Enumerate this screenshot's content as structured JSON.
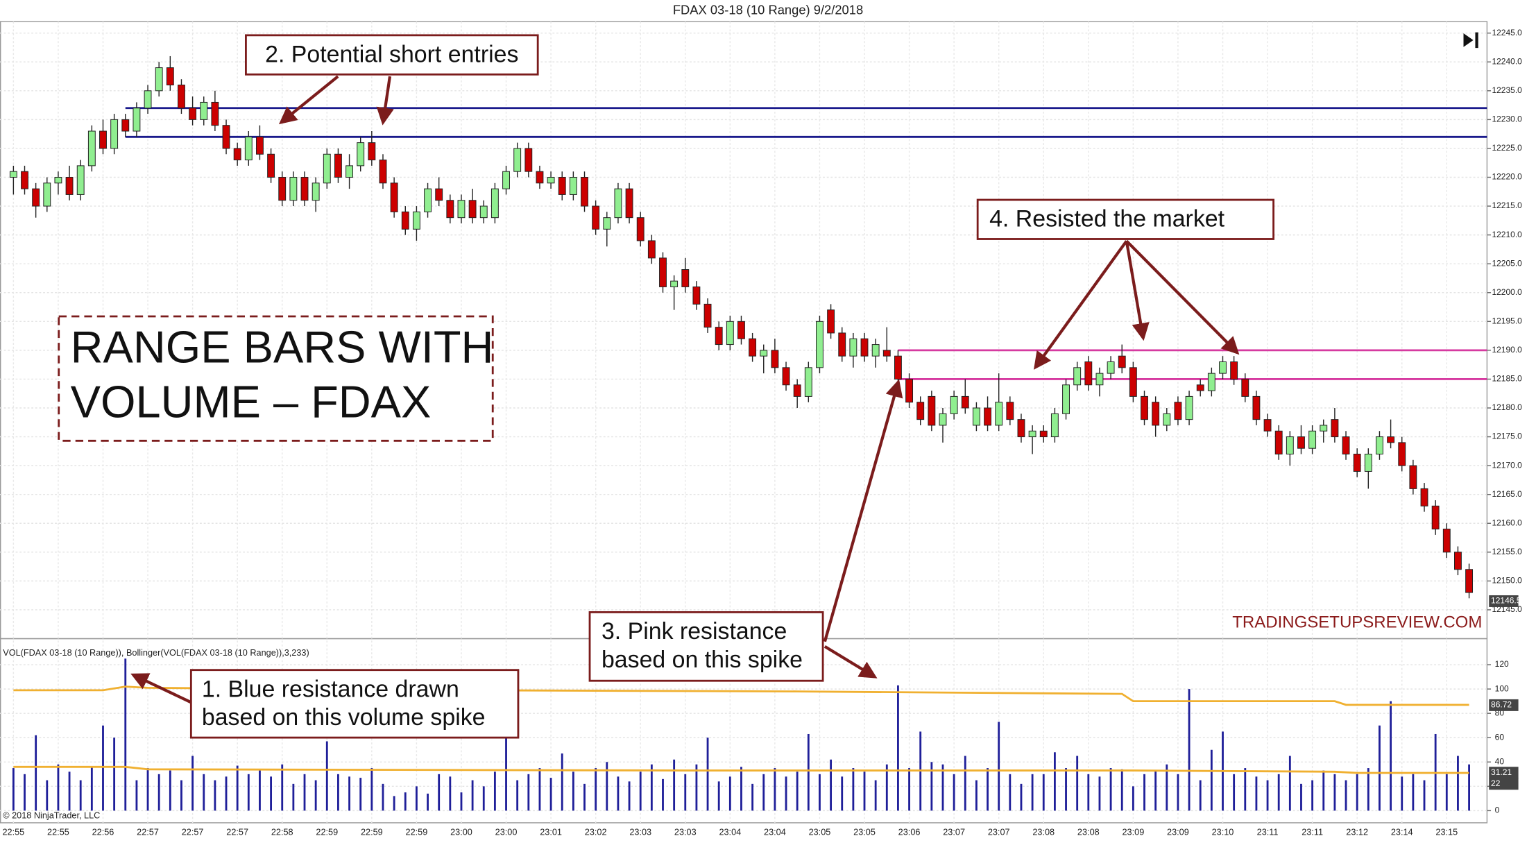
{
  "chart_data": {
    "type": "candlestick",
    "title": "FDAX 03-18 (10 Range)  9/2/2018",
    "categories": [
      "22:55",
      null,
      null,
      null,
      "22:55",
      null,
      null,
      null,
      "22:56",
      null,
      null,
      null,
      "22:57",
      null,
      null,
      null,
      "22:57",
      null,
      null,
      null,
      "22:57",
      null,
      null,
      null,
      "22:58",
      null,
      null,
      null,
      "22:59",
      null,
      null,
      null,
      "22:59",
      null,
      null,
      null,
      "22:59",
      null,
      null,
      null,
      "23:00",
      null,
      null,
      null,
      "23:00",
      null,
      null,
      null,
      "23:01",
      null,
      null,
      null,
      "23:02",
      null,
      null,
      null,
      "23:03",
      null,
      null,
      null,
      "23:03",
      null,
      null,
      null,
      "23:04",
      null,
      null,
      null,
      "23:04",
      null,
      null,
      null,
      "23:05",
      null,
      null,
      null,
      "23:05",
      null,
      null,
      null,
      "23:06",
      null,
      null,
      null,
      "23:07",
      null,
      null,
      null,
      "23:07",
      null,
      null,
      null,
      "23:08",
      null,
      null,
      null,
      "23:08",
      null,
      null,
      null,
      "23:09",
      null,
      null,
      null,
      "23:09",
      null,
      null,
      null,
      "23:10",
      null,
      null,
      null,
      "23:11",
      null,
      null,
      null,
      "23:11",
      null,
      null,
      null,
      "23:12",
      null,
      null,
      null,
      "23:14",
      null,
      null,
      null,
      "23:15",
      null,
      null
    ],
    "xlim": [
      -1.2,
      131.6
    ],
    "up_color": "#90ee90",
    "down_color": "#cc0000",
    "candles": [
      [
        12220,
        12222,
        12217,
        12221
      ],
      [
        12221,
        12222,
        12217,
        12218
      ],
      [
        12218,
        12219,
        12213,
        12215
      ],
      [
        12215,
        12220,
        12214,
        12219
      ],
      [
        12219,
        12221,
        12217,
        12220
      ],
      [
        12220,
        12222,
        12216,
        12217
      ],
      [
        12217,
        12223,
        12216,
        12222
      ],
      [
        12222,
        12229,
        12221,
        12228
      ],
      [
        12228,
        12230,
        12224,
        12225
      ],
      [
        12225,
        12231,
        12224,
        12230
      ],
      [
        12230,
        12231,
        12227,
        12228
      ],
      [
        12228,
        12233,
        12227,
        12232
      ],
      [
        12232,
        12236,
        12231,
        12235
      ],
      [
        12235,
        12240,
        12234,
        12239
      ],
      [
        12239,
        12241,
        12235,
        12236
      ],
      [
        12236,
        12237,
        12231,
        12232
      ],
      [
        12232,
        12234,
        12229,
        12230
      ],
      [
        12230,
        12234,
        12229,
        12233
      ],
      [
        12233,
        12235,
        12228,
        12229
      ],
      [
        12229,
        12230,
        12224,
        12225
      ],
      [
        12225,
        12226,
        12222,
        12223
      ],
      [
        12223,
        12228,
        12222,
        12227
      ],
      [
        12227,
        12229,
        12223,
        12224
      ],
      [
        12224,
        12225,
        12219,
        12220
      ],
      [
        12220,
        12221,
        12215,
        12216
      ],
      [
        12216,
        12221,
        12215,
        12220
      ],
      [
        12220,
        12221,
        12215,
        12216
      ],
      [
        12216,
        12220,
        12214,
        12219
      ],
      [
        12219,
        12225,
        12218,
        12224
      ],
      [
        12224,
        12225,
        12219,
        12220
      ],
      [
        12220,
        12224,
        12218,
        12222
      ],
      [
        12222,
        12227,
        12221,
        12226
      ],
      [
        12226,
        12228,
        12222,
        12223
      ],
      [
        12223,
        12224,
        12218,
        12219
      ],
      [
        12219,
        12220,
        12213,
        12214
      ],
      [
        12214,
        12215,
        12210,
        12211
      ],
      [
        12211,
        12215,
        12209,
        12214
      ],
      [
        12214,
        12219,
        12213,
        12218
      ],
      [
        12218,
        12220,
        12215,
        12216
      ],
      [
        12216,
        12217,
        12212,
        12213
      ],
      [
        12213,
        12217,
        12212,
        12216
      ],
      [
        12216,
        12218,
        12212,
        12213
      ],
      [
        12213,
        12216,
        12212,
        12215
      ],
      [
        12213,
        12219,
        12212,
        12218
      ],
      [
        12218,
        12222,
        12217,
        12221
      ],
      [
        12221,
        12226,
        12220,
        12225
      ],
      [
        12225,
        12226,
        12220,
        12221
      ],
      [
        12221,
        12222,
        12218,
        12219
      ],
      [
        12219,
        12221,
        12218,
        12220
      ],
      [
        12220,
        12221,
        12216,
        12217
      ],
      [
        12217,
        12221,
        12216,
        12220
      ],
      [
        12220,
        12221,
        12214,
        12215
      ],
      [
        12215,
        12216,
        12210,
        12211
      ],
      [
        12211,
        12214,
        12208,
        12213
      ],
      [
        12213,
        12219,
        12212,
        12218
      ],
      [
        12218,
        12219,
        12212,
        12213
      ],
      [
        12213,
        12214,
        12208,
        12209
      ],
      [
        12209,
        12210,
        12205,
        12206
      ],
      [
        12206,
        12207,
        12200,
        12201
      ],
      [
        12201,
        12203,
        12197,
        12202
      ],
      [
        12204,
        12206,
        12200,
        12201
      ],
      [
        12201,
        12202,
        12197,
        12198
      ],
      [
        12198,
        12199,
        12193,
        12194
      ],
      [
        12194,
        12195,
        12190,
        12191
      ],
      [
        12191,
        12196,
        12190,
        12195
      ],
      [
        12195,
        12196,
        12191,
        12192
      ],
      [
        12192,
        12193,
        12188,
        12189
      ],
      [
        12189,
        12191,
        12186,
        12190
      ],
      [
        12190,
        12192,
        12186,
        12187
      ],
      [
        12187,
        12188,
        12183,
        12184
      ],
      [
        12184,
        12185,
        12180,
        12182
      ],
      [
        12182,
        12188,
        12181,
        12187
      ],
      [
        12187,
        12196,
        12186,
        12195
      ],
      [
        12197,
        12198,
        12192,
        12193
      ],
      [
        12193,
        12194,
        12188,
        12189
      ],
      [
        12189,
        12193,
        12187,
        12192
      ],
      [
        12192,
        12193,
        12188,
        12189
      ],
      [
        12189,
        12192,
        12187,
        12191
      ],
      [
        12190,
        12194,
        12188,
        12189
      ],
      [
        12189,
        12190,
        12184,
        12185
      ],
      [
        12185,
        12186,
        12180,
        12181
      ],
      [
        12181,
        12182,
        12177,
        12178
      ],
      [
        12182,
        12183,
        12176,
        12177
      ],
      [
        12177,
        12180,
        12174,
        12179
      ],
      [
        12179,
        12183,
        12178,
        12182
      ],
      [
        12182,
        12185,
        12179,
        12180
      ],
      [
        12177,
        12181,
        12176,
        12180
      ],
      [
        12180,
        12182,
        12176,
        12177
      ],
      [
        12177,
        12186,
        12176,
        12181
      ],
      [
        12181,
        12182,
        12177,
        12178
      ],
      [
        12178,
        12179,
        12174,
        12175
      ],
      [
        12175,
        12177,
        12172,
        12176
      ],
      [
        12176,
        12177,
        12174,
        12175
      ],
      [
        12175,
        12180,
        12174,
        12179
      ],
      [
        12179,
        12185,
        12178,
        12184
      ],
      [
        12184,
        12188,
        12183,
        12187
      ],
      [
        12188,
        12189,
        12183,
        12184
      ],
      [
        12184,
        12187,
        12182,
        12186
      ],
      [
        12186,
        12189,
        12185,
        12188
      ],
      [
        12189,
        12191,
        12186,
        12187
      ],
      [
        12187,
        12188,
        12181,
        12182
      ],
      [
        12182,
        12183,
        12177,
        12178
      ],
      [
        12181,
        12182,
        12175,
        12177
      ],
      [
        12177,
        12180,
        12176,
        12179
      ],
      [
        12181,
        12182,
        12177,
        12178
      ],
      [
        12178,
        12183,
        12177,
        12182
      ],
      [
        12184,
        12185,
        12182,
        12183
      ],
      [
        12183,
        12187,
        12182,
        12186
      ],
      [
        12186,
        12189,
        12185,
        12188
      ],
      [
        12188,
        12189,
        12184,
        12185
      ],
      [
        12185,
        12186,
        12181,
        12182
      ],
      [
        12182,
        12183,
        12177,
        12178
      ],
      [
        12178,
        12179,
        12175,
        12176
      ],
      [
        12176,
        12177,
        12171,
        12172
      ],
      [
        12172,
        12176,
        12170,
        12175
      ],
      [
        12175,
        12177,
        12172,
        12173
      ],
      [
        12173,
        12177,
        12172,
        12176
      ],
      [
        12176,
        12178,
        12174,
        12177
      ],
      [
        12178,
        12180,
        12174,
        12175
      ],
      [
        12175,
        12176,
        12171,
        12172
      ],
      [
        12172,
        12173,
        12168,
        12169
      ],
      [
        12169,
        12173,
        12166,
        12172
      ],
      [
        12172,
        12176,
        12171,
        12175
      ],
      [
        12175,
        12178,
        12173,
        12174
      ],
      [
        12174,
        12175,
        12169,
        12170
      ],
      [
        12170,
        12171,
        12165,
        12166
      ],
      [
        12166,
        12167,
        12162,
        12163
      ],
      [
        12163,
        12164,
        12158,
        12159
      ],
      [
        12159,
        12160,
        12154,
        12155
      ],
      [
        12155,
        12156,
        12151,
        12152
      ],
      [
        12152,
        12153,
        12147,
        12148
      ]
    ],
    "ylim": [
      12140,
      12247
    ],
    "yticks": [
      {
        "value": 12245,
        "label": "12245.0"
      },
      {
        "value": 12240,
        "label": "12240.0"
      },
      {
        "value": 12235,
        "label": "12235.0"
      },
      {
        "value": 12230,
        "label": "12230.0"
      },
      {
        "value": 12225,
        "label": "12225.0"
      },
      {
        "value": 12220,
        "label": "12220.0"
      },
      {
        "value": 12215,
        "label": "12215.0"
      },
      {
        "value": 12210,
        "label": "12210.0"
      },
      {
        "value": 12205,
        "label": "12205.0"
      },
      {
        "value": 12200,
        "label": "12200.0"
      },
      {
        "value": 12195,
        "label": "12195.0"
      },
      {
        "value": 12190,
        "label": "12190.0"
      },
      {
        "value": 12185,
        "label": "12185.0"
      },
      {
        "value": 12180,
        "label": "12180.0"
      },
      {
        "value": 12175,
        "label": "12175.0"
      },
      {
        "value": 12170,
        "label": "12170.0"
      },
      {
        "value": 12165,
        "label": "12165.0"
      },
      {
        "value": 12160,
        "label": "12160.0"
      },
      {
        "value": 12155,
        "label": "12155.0"
      },
      {
        "value": 12150,
        "label": "12150.0"
      },
      {
        "value": 12145,
        "label": "12145.0"
      }
    ],
    "last_price": 12146.5,
    "levels": [
      {
        "value": 12232,
        "color": "#1a1a8c",
        "from": 10
      },
      {
        "value": 12227,
        "color": "#1a1a8c",
        "from": 10
      },
      {
        "value": 12190,
        "color": "#d63aa0",
        "from": 79
      },
      {
        "value": 12185,
        "color": "#d63aa0",
        "from": 79
      }
    ],
    "volume": {
      "label": "VOL(FDAX 03-18 (10 Range)), Bollinger(VOL(FDAX 03-18 (10 Range)),3,233)",
      "color": "#1f1f99",
      "values": [
        35,
        30,
        62,
        25,
        38,
        32,
        25,
        36,
        70,
        60,
        125,
        25,
        35,
        30,
        33,
        25,
        45,
        30,
        25,
        28,
        37,
        30,
        33,
        28,
        38,
        22,
        30,
        25,
        57,
        30,
        28,
        27,
        35,
        22,
        12,
        15,
        20,
        14,
        30,
        28,
        15,
        25,
        20,
        32,
        60,
        25,
        30,
        35,
        27,
        47,
        32,
        22,
        35,
        40,
        28,
        24,
        32,
        38,
        26,
        42,
        30,
        38,
        60,
        24,
        28,
        36,
        22,
        30,
        35,
        28,
        32,
        63,
        30,
        42,
        28,
        35,
        32,
        25,
        38,
        103,
        35,
        65,
        40,
        38,
        30,
        45,
        25,
        35,
        73,
        30,
        22,
        30,
        30,
        48,
        35,
        45,
        30,
        28,
        35,
        34,
        20,
        30,
        33,
        38,
        30,
        100,
        25,
        50,
        65,
        30,
        35,
        28,
        25,
        30,
        45,
        22,
        25,
        33,
        30,
        25,
        30,
        35,
        70,
        90,
        28,
        30,
        25,
        63,
        30,
        45,
        38
      ],
      "ylim": [
        -10,
        139
      ],
      "yticks": [
        0,
        20,
        40,
        60,
        80,
        100,
        120
      ],
      "bands": [
        {
          "color": "#f0b030",
          "x": [
            0,
            8,
            10,
            12,
            40,
            70,
            99,
            100,
            118,
            119,
            130
          ],
          "values": [
            99,
            99,
            102,
            101,
            99,
            98,
            96,
            90,
            90,
            87,
            87
          ]
        },
        {
          "color": "#f0b030",
          "x": [
            0,
            10,
            12,
            60,
            100,
            118,
            120,
            130
          ],
          "values": [
            36,
            36,
            34,
            33,
            33,
            32,
            31,
            31
          ]
        }
      ],
      "markers": [
        86.72,
        31.21,
        22
      ]
    },
    "annotations": [
      "2. Potential short entries",
      "RANGE BARS WITH",
      "VOLUME – FDAX",
      "4. Resisted the market",
      "3. Pink resistance",
      "based on this spike",
      "1. Blue resistance drawn",
      "based on this volume spike"
    ],
    "watermark": "TRADINGSETUPSREVIEW.COM",
    "copyright": "© 2018 NinjaTrader, LLC"
  }
}
